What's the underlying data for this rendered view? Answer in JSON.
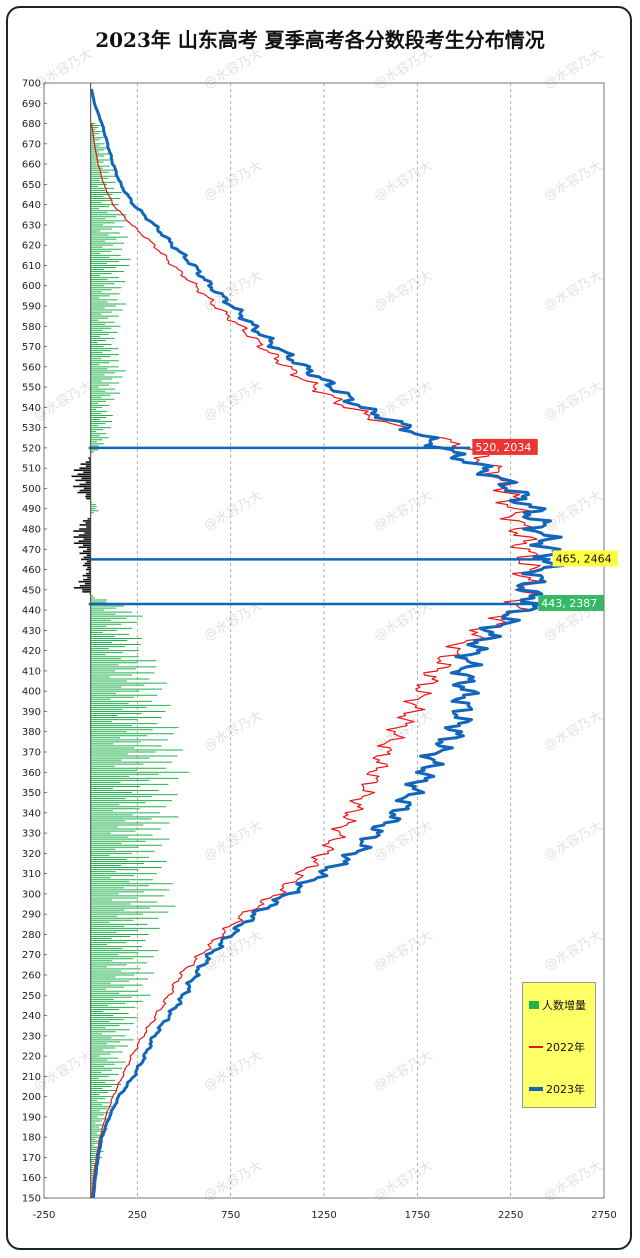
{
  "watermark": "@水容乃大",
  "chart_data": {
    "type": "line",
    "title": "2023年 山东高考 夏季高考各分数段考生分布情况",
    "orientation": "horizontal",
    "y_axis": {
      "range": [
        150,
        700
      ],
      "step": 10
    },
    "x_axis": {
      "range": [
        -250,
        2750
      ],
      "ticks": [
        -250,
        250,
        750,
        1250,
        1750,
        2250,
        2750
      ]
    },
    "grid": "vertical-dashed",
    "legend_position": "bottom-right",
    "legend": [
      {
        "label": "人数增量",
        "color": "#22b14c"
      },
      {
        "label": "2022年",
        "color": "#ee1111"
      },
      {
        "label": "2023年",
        "color": "#1166bb"
      }
    ],
    "series": [
      {
        "name": "2023年",
        "color": "#1166bb",
        "score": [
          697,
          690,
          680,
          670,
          660,
          650,
          640,
          630,
          620,
          610,
          600,
          590,
          580,
          570,
          560,
          550,
          540,
          530,
          520,
          510,
          500,
          490,
          480,
          470,
          465,
          460,
          450,
          443,
          440,
          430,
          420,
          410,
          400,
          390,
          380,
          370,
          360,
          350,
          340,
          330,
          320,
          310,
          300,
          290,
          280,
          270,
          260,
          250,
          240,
          230,
          220,
          210,
          200,
          190,
          180,
          170,
          160,
          150
        ],
        "count": [
          5,
          20,
          60,
          90,
          120,
          160,
          230,
          340,
          440,
          550,
          640,
          760,
          870,
          990,
          1140,
          1300,
          1450,
          1700,
          1880,
          2100,
          2260,
          2360,
          2410,
          2450,
          2464,
          2420,
          2330,
          2387,
          2300,
          2150,
          2050,
          2000,
          2010,
          1990,
          1960,
          1850,
          1800,
          1720,
          1650,
          1520,
          1420,
          1240,
          1060,
          880,
          750,
          640,
          560,
          500,
          420,
          340,
          290,
          230,
          150,
          100,
          60,
          40,
          25,
          15
        ]
      },
      {
        "name": "2022年",
        "color": "#ee1111",
        "score": [
          680,
          670,
          660,
          650,
          640,
          630,
          620,
          610,
          600,
          590,
          580,
          570,
          560,
          550,
          540,
          530,
          520,
          510,
          500,
          490,
          480,
          470,
          460,
          450,
          440,
          430,
          420,
          410,
          400,
          390,
          380,
          370,
          360,
          350,
          340,
          330,
          320,
          310,
          300,
          290,
          280,
          270,
          260,
          250,
          240,
          230,
          220,
          210,
          200,
          190,
          180,
          170,
          160,
          150
        ],
        "count": [
          5,
          20,
          40,
          70,
          120,
          220,
          340,
          440,
          560,
          670,
          800,
          920,
          1050,
          1200,
          1380,
          1650,
          2034,
          2150,
          2230,
          2260,
          2300,
          2330,
          2340,
          2340,
          2280,
          2100,
          1940,
          1850,
          1770,
          1720,
          1640,
          1570,
          1530,
          1470,
          1400,
          1330,
          1250,
          1130,
          1000,
          820,
          700,
          590,
          480,
          420,
          350,
          280,
          220,
          170,
          120,
          80,
          50,
          30,
          15,
          5
        ]
      },
      {
        "name": "人数增量",
        "color": "#22b14c",
        "score": [
          680,
          670,
          660,
          650,
          640,
          630,
          620,
          610,
          600,
          590,
          580,
          570,
          560,
          550,
          540,
          530,
          520,
          510,
          500,
          490,
          480,
          470,
          460,
          450,
          440,
          430,
          420,
          410,
          400,
          390,
          380,
          370,
          360,
          350,
          340,
          330,
          320,
          310,
          300,
          290,
          280,
          270,
          260,
          250,
          240,
          230,
          220,
          210,
          200,
          190,
          180,
          170,
          160,
          150
        ],
        "count": [
          30,
          60,
          80,
          100,
          110,
          130,
          120,
          140,
          110,
          120,
          100,
          90,
          120,
          110,
          70,
          80,
          40,
          -60,
          -70,
          40,
          -70,
          -50,
          -20,
          -60,
          180,
          160,
          190,
          250,
          260,
          270,
          300,
          310,
          330,
          290,
          300,
          270,
          250,
          260,
          290,
          280,
          210,
          230,
          210,
          200,
          160,
          150,
          120,
          110,
          90,
          70,
          50,
          40,
          20,
          10
        ]
      }
    ],
    "annotations": [
      {
        "text": "520, 2034",
        "score": 520,
        "value": 2034,
        "bg": "#ee3333",
        "fg": "#ffffff"
      },
      {
        "text": "465, 2464",
        "score": 465,
        "value": 2464,
        "bg": "#ffff44",
        "fg": "#111111"
      },
      {
        "text": "443, 2387",
        "score": 443,
        "value": 2387,
        "bg": "#33bb66",
        "fg": "#ffffff"
      }
    ]
  }
}
